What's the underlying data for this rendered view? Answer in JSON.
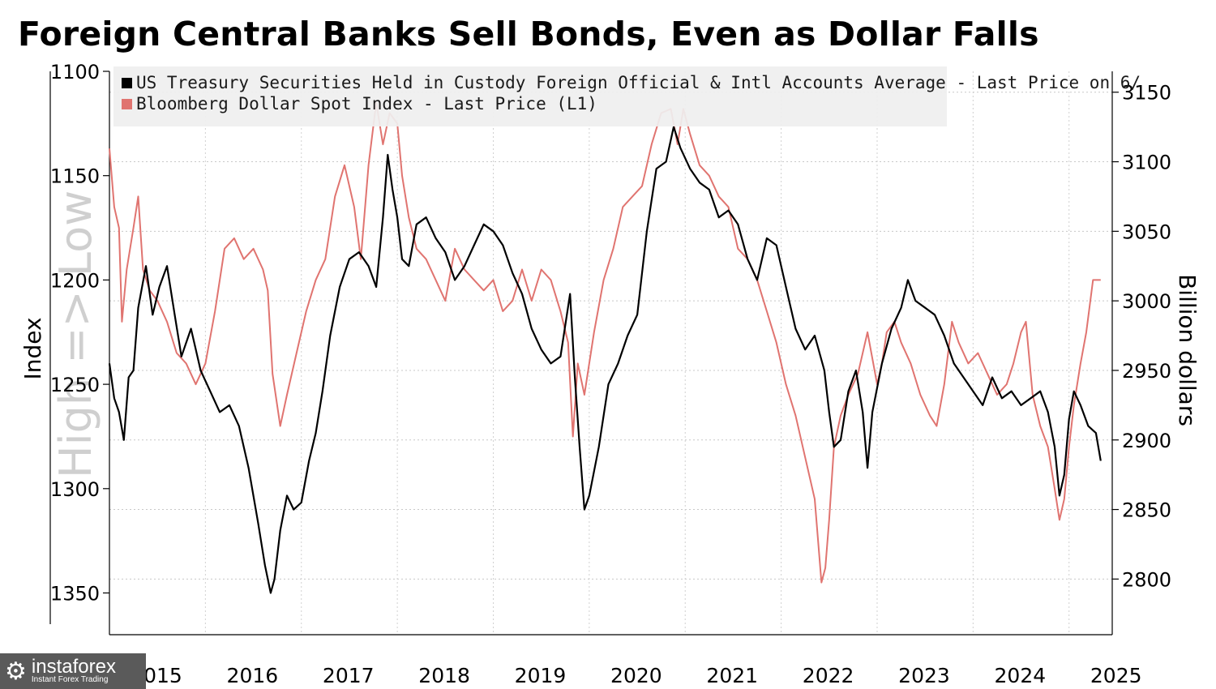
{
  "title": "Foreign Central Banks Sell Bonds, Even as Dollar Falls",
  "watermark": "High => Low",
  "logo": {
    "brand": "instaforex",
    "tagline": "Instant Forex Trading",
    "icon": "gear-icon"
  },
  "chart_data": {
    "type": "line",
    "title": "Foreign Central Banks Sell Bonds, Even as Dollar Falls",
    "left_axis": {
      "label": "Index",
      "inverted": true,
      "range": [
        1100,
        1370
      ],
      "ticks": [
        "1100",
        "1150",
        "1200",
        "1250",
        "1300",
        "1350"
      ]
    },
    "right_axis": {
      "label": "Billion dollars",
      "range": [
        2760,
        3165
      ],
      "ticks": [
        "3150",
        "3100",
        "3050",
        "3000",
        "2950",
        "2900",
        "2850",
        "2800"
      ]
    },
    "x_ticks": [
      "2015",
      "2016",
      "2017",
      "2018",
      "2019",
      "2020",
      "2021",
      "2022",
      "2023",
      "2024",
      "2025"
    ],
    "x_range": [
      2015.0,
      2025.45
    ],
    "grid": true,
    "legend_placement": "top-left",
    "series": [
      {
        "name": "US Treasury Securities Held in Custody Foreign Official & Intl Accounts Average - Last Price on 6/",
        "axis": "right",
        "color": "#000000",
        "points": [
          [
            2015.0,
            2955
          ],
          [
            2015.05,
            2930
          ],
          [
            2015.1,
            2920
          ],
          [
            2015.15,
            2900
          ],
          [
            2015.2,
            2945
          ],
          [
            2015.25,
            2950
          ],
          [
            2015.3,
            2995
          ],
          [
            2015.38,
            3025
          ],
          [
            2015.45,
            2990
          ],
          [
            2015.52,
            3010
          ],
          [
            2015.6,
            3025
          ],
          [
            2015.68,
            2990
          ],
          [
            2015.75,
            2960
          ],
          [
            2015.85,
            2980
          ],
          [
            2015.95,
            2950
          ],
          [
            2016.05,
            2935
          ],
          [
            2016.15,
            2920
          ],
          [
            2016.25,
            2925
          ],
          [
            2016.35,
            2910
          ],
          [
            2016.45,
            2880
          ],
          [
            2016.55,
            2840
          ],
          [
            2016.62,
            2810
          ],
          [
            2016.68,
            2790
          ],
          [
            2016.72,
            2800
          ],
          [
            2016.78,
            2835
          ],
          [
            2016.85,
            2860
          ],
          [
            2016.92,
            2850
          ],
          [
            2017.0,
            2855
          ],
          [
            2017.08,
            2885
          ],
          [
            2017.15,
            2905
          ],
          [
            2017.22,
            2935
          ],
          [
            2017.3,
            2975
          ],
          [
            2017.4,
            3010
          ],
          [
            2017.5,
            3030
          ],
          [
            2017.6,
            3035
          ],
          [
            2017.7,
            3025
          ],
          [
            2017.78,
            3010
          ],
          [
            2017.85,
            3060
          ],
          [
            2017.9,
            3105
          ],
          [
            2017.95,
            3080
          ],
          [
            2018.0,
            3060
          ],
          [
            2018.05,
            3030
          ],
          [
            2018.12,
            3025
          ],
          [
            2018.2,
            3055
          ],
          [
            2018.3,
            3060
          ],
          [
            2018.4,
            3045
          ],
          [
            2018.5,
            3035
          ],
          [
            2018.6,
            3015
          ],
          [
            2018.7,
            3025
          ],
          [
            2018.8,
            3040
          ],
          [
            2018.9,
            3055
          ],
          [
            2019.0,
            3050
          ],
          [
            2019.1,
            3040
          ],
          [
            2019.2,
            3020
          ],
          [
            2019.3,
            3005
          ],
          [
            2019.4,
            2980
          ],
          [
            2019.5,
            2965
          ],
          [
            2019.6,
            2955
          ],
          [
            2019.7,
            2960
          ],
          [
            2019.8,
            3005
          ],
          [
            2019.85,
            2945
          ],
          [
            2019.9,
            2895
          ],
          [
            2019.95,
            2850
          ],
          [
            2020.0,
            2860
          ],
          [
            2020.1,
            2895
          ],
          [
            2020.2,
            2940
          ],
          [
            2020.3,
            2955
          ],
          [
            2020.4,
            2975
          ],
          [
            2020.5,
            2990
          ],
          [
            2020.6,
            3050
          ],
          [
            2020.7,
            3095
          ],
          [
            2020.8,
            3100
          ],
          [
            2020.88,
            3125
          ],
          [
            2020.95,
            3110
          ],
          [
            2021.05,
            3095
          ],
          [
            2021.15,
            3085
          ],
          [
            2021.25,
            3080
          ],
          [
            2021.35,
            3060
          ],
          [
            2021.45,
            3065
          ],
          [
            2021.55,
            3055
          ],
          [
            2021.65,
            3030
          ],
          [
            2021.75,
            3015
          ],
          [
            2021.85,
            3045
          ],
          [
            2021.95,
            3040
          ],
          [
            2022.05,
            3010
          ],
          [
            2022.15,
            2980
          ],
          [
            2022.25,
            2965
          ],
          [
            2022.35,
            2975
          ],
          [
            2022.45,
            2950
          ],
          [
            2022.5,
            2920
          ],
          [
            2022.55,
            2895
          ],
          [
            2022.62,
            2900
          ],
          [
            2022.7,
            2935
          ],
          [
            2022.78,
            2950
          ],
          [
            2022.85,
            2920
          ],
          [
            2022.9,
            2880
          ],
          [
            2022.95,
            2920
          ],
          [
            2023.05,
            2955
          ],
          [
            2023.15,
            2980
          ],
          [
            2023.25,
            2995
          ],
          [
            2023.32,
            3015
          ],
          [
            2023.4,
            3000
          ],
          [
            2023.5,
            2995
          ],
          [
            2023.6,
            2990
          ],
          [
            2023.7,
            2975
          ],
          [
            2023.8,
            2955
          ],
          [
            2023.9,
            2945
          ],
          [
            2024.0,
            2935
          ],
          [
            2024.1,
            2925
          ],
          [
            2024.2,
            2945
          ],
          [
            2024.3,
            2930
          ],
          [
            2024.4,
            2935
          ],
          [
            2024.5,
            2925
          ],
          [
            2024.6,
            2930
          ],
          [
            2024.7,
            2935
          ],
          [
            2024.78,
            2920
          ],
          [
            2024.85,
            2895
          ],
          [
            2024.9,
            2860
          ],
          [
            2024.95,
            2875
          ],
          [
            2025.0,
            2915
          ],
          [
            2025.05,
            2935
          ],
          [
            2025.12,
            2925
          ],
          [
            2025.2,
            2910
          ],
          [
            2025.28,
            2905
          ],
          [
            2025.33,
            2885
          ]
        ]
      },
      {
        "name": "Bloomberg Dollar Spot Index - Last Price (L1)",
        "axis": "left",
        "color": "#e07470",
        "points": [
          [
            2015.0,
            1137
          ],
          [
            2015.05,
            1165
          ],
          [
            2015.1,
            1175
          ],
          [
            2015.13,
            1220
          ],
          [
            2015.18,
            1195
          ],
          [
            2015.25,
            1175
          ],
          [
            2015.3,
            1160
          ],
          [
            2015.35,
            1195
          ],
          [
            2015.42,
            1205
          ],
          [
            2015.5,
            1210
          ],
          [
            2015.6,
            1220
          ],
          [
            2015.7,
            1235
          ],
          [
            2015.8,
            1240
          ],
          [
            2015.9,
            1250
          ],
          [
            2016.0,
            1240
          ],
          [
            2016.1,
            1215
          ],
          [
            2016.2,
            1185
          ],
          [
            2016.3,
            1180
          ],
          [
            2016.4,
            1190
          ],
          [
            2016.5,
            1185
          ],
          [
            2016.6,
            1195
          ],
          [
            2016.65,
            1205
          ],
          [
            2016.7,
            1245
          ],
          [
            2016.78,
            1270
          ],
          [
            2016.85,
            1255
          ],
          [
            2016.95,
            1235
          ],
          [
            2017.05,
            1215
          ],
          [
            2017.15,
            1200
          ],
          [
            2017.25,
            1190
          ],
          [
            2017.35,
            1160
          ],
          [
            2017.45,
            1145
          ],
          [
            2017.55,
            1165
          ],
          [
            2017.62,
            1190
          ],
          [
            2017.7,
            1145
          ],
          [
            2017.78,
            1115
          ],
          [
            2017.85,
            1135
          ],
          [
            2017.92,
            1120
          ],
          [
            2018.0,
            1125
          ],
          [
            2018.05,
            1150
          ],
          [
            2018.12,
            1170
          ],
          [
            2018.2,
            1185
          ],
          [
            2018.3,
            1190
          ],
          [
            2018.4,
            1200
          ],
          [
            2018.5,
            1210
          ],
          [
            2018.6,
            1185
          ],
          [
            2018.7,
            1195
          ],
          [
            2018.8,
            1200
          ],
          [
            2018.9,
            1205
          ],
          [
            2019.0,
            1200
          ],
          [
            2019.1,
            1215
          ],
          [
            2019.2,
            1210
          ],
          [
            2019.3,
            1195
          ],
          [
            2019.4,
            1210
          ],
          [
            2019.5,
            1195
          ],
          [
            2019.6,
            1200
          ],
          [
            2019.7,
            1215
          ],
          [
            2019.78,
            1230
          ],
          [
            2019.83,
            1275
          ],
          [
            2019.88,
            1240
          ],
          [
            2019.95,
            1255
          ],
          [
            2020.05,
            1225
          ],
          [
            2020.15,
            1200
          ],
          [
            2020.25,
            1185
          ],
          [
            2020.35,
            1165
          ],
          [
            2020.45,
            1160
          ],
          [
            2020.55,
            1155
          ],
          [
            2020.65,
            1135
          ],
          [
            2020.75,
            1120
          ],
          [
            2020.85,
            1118
          ],
          [
            2020.92,
            1135
          ],
          [
            2020.98,
            1118
          ],
          [
            2021.05,
            1130
          ],
          [
            2021.15,
            1145
          ],
          [
            2021.25,
            1150
          ],
          [
            2021.35,
            1160
          ],
          [
            2021.45,
            1165
          ],
          [
            2021.55,
            1185
          ],
          [
            2021.65,
            1190
          ],
          [
            2021.75,
            1200
          ],
          [
            2021.85,
            1215
          ],
          [
            2021.95,
            1230
          ],
          [
            2022.05,
            1250
          ],
          [
            2022.15,
            1265
          ],
          [
            2022.25,
            1285
          ],
          [
            2022.35,
            1305
          ],
          [
            2022.42,
            1345
          ],
          [
            2022.46,
            1338
          ],
          [
            2022.5,
            1315
          ],
          [
            2022.55,
            1280
          ],
          [
            2022.62,
            1265
          ],
          [
            2022.7,
            1255
          ],
          [
            2022.8,
            1245
          ],
          [
            2022.9,
            1225
          ],
          [
            2023.0,
            1250
          ],
          [
            2023.05,
            1240
          ],
          [
            2023.1,
            1225
          ],
          [
            2023.18,
            1220
          ],
          [
            2023.25,
            1230
          ],
          [
            2023.35,
            1240
          ],
          [
            2023.45,
            1255
          ],
          [
            2023.55,
            1265
          ],
          [
            2023.62,
            1270
          ],
          [
            2023.7,
            1250
          ],
          [
            2023.78,
            1220
          ],
          [
            2023.85,
            1230
          ],
          [
            2023.95,
            1240
          ],
          [
            2024.05,
            1235
          ],
          [
            2024.15,
            1245
          ],
          [
            2024.25,
            1255
          ],
          [
            2024.35,
            1250
          ],
          [
            2024.42,
            1240
          ],
          [
            2024.5,
            1225
          ],
          [
            2024.55,
            1220
          ],
          [
            2024.62,
            1255
          ],
          [
            2024.7,
            1270
          ],
          [
            2024.78,
            1280
          ],
          [
            2024.85,
            1300
          ],
          [
            2024.9,
            1315
          ],
          [
            2024.95,
            1305
          ],
          [
            2025.0,
            1280
          ],
          [
            2025.05,
            1260
          ],
          [
            2025.12,
            1240
          ],
          [
            2025.18,
            1225
          ],
          [
            2025.25,
            1200
          ],
          [
            2025.33,
            1200
          ]
        ]
      }
    ]
  }
}
